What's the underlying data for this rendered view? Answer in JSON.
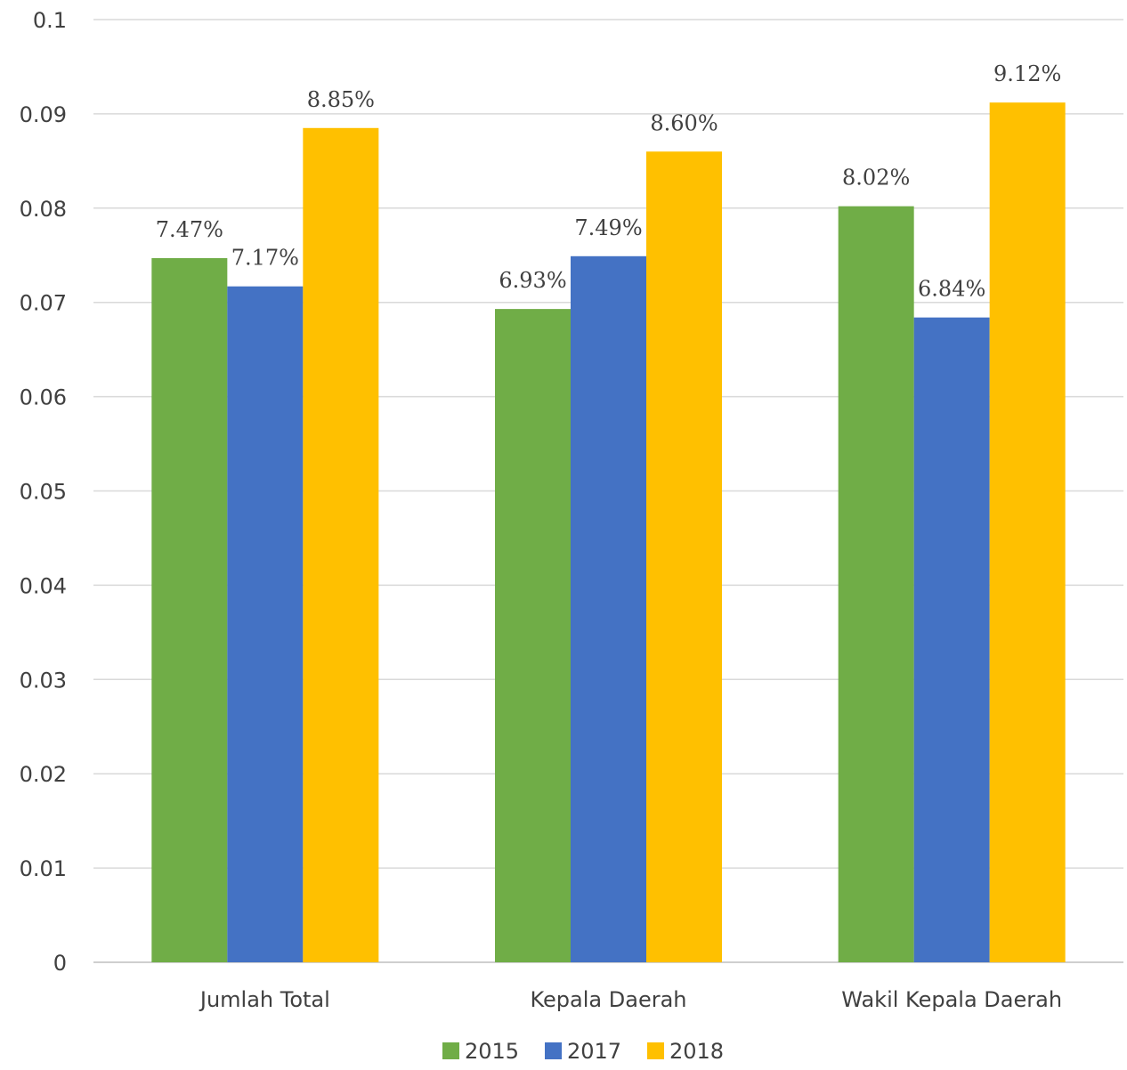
{
  "chart_data": {
    "type": "bar",
    "title": "",
    "xlabel": "",
    "ylabel": "",
    "categories": [
      "Jumlah Total",
      "Kepala Daerah",
      "Wakil Kepala Daerah"
    ],
    "series": [
      {
        "name": "2015",
        "color": "#70ad47",
        "values": [
          0.0747,
          0.0693,
          0.0802
        ],
        "labels": [
          "7.47%",
          "6.93%",
          "8.02%"
        ]
      },
      {
        "name": "2017",
        "color": "#4472c4",
        "values": [
          0.0717,
          0.0749,
          0.0684
        ],
        "labels": [
          "7.17%",
          "7.49%",
          "6.84%"
        ]
      },
      {
        "name": "2018",
        "color": "#ffc000",
        "values": [
          0.0885,
          0.086,
          0.0912
        ],
        "labels": [
          "8.85%",
          "8.60%",
          "9.12%"
        ]
      }
    ],
    "yticks": [
      "0",
      "0.01",
      "0.02",
      "0.03",
      "0.04",
      "0.05",
      "0.06",
      "0.07",
      "0.08",
      "0.09",
      "0.1"
    ],
    "ylim": [
      0,
      0.1
    ],
    "grid": true,
    "legend_position": "bottom"
  }
}
